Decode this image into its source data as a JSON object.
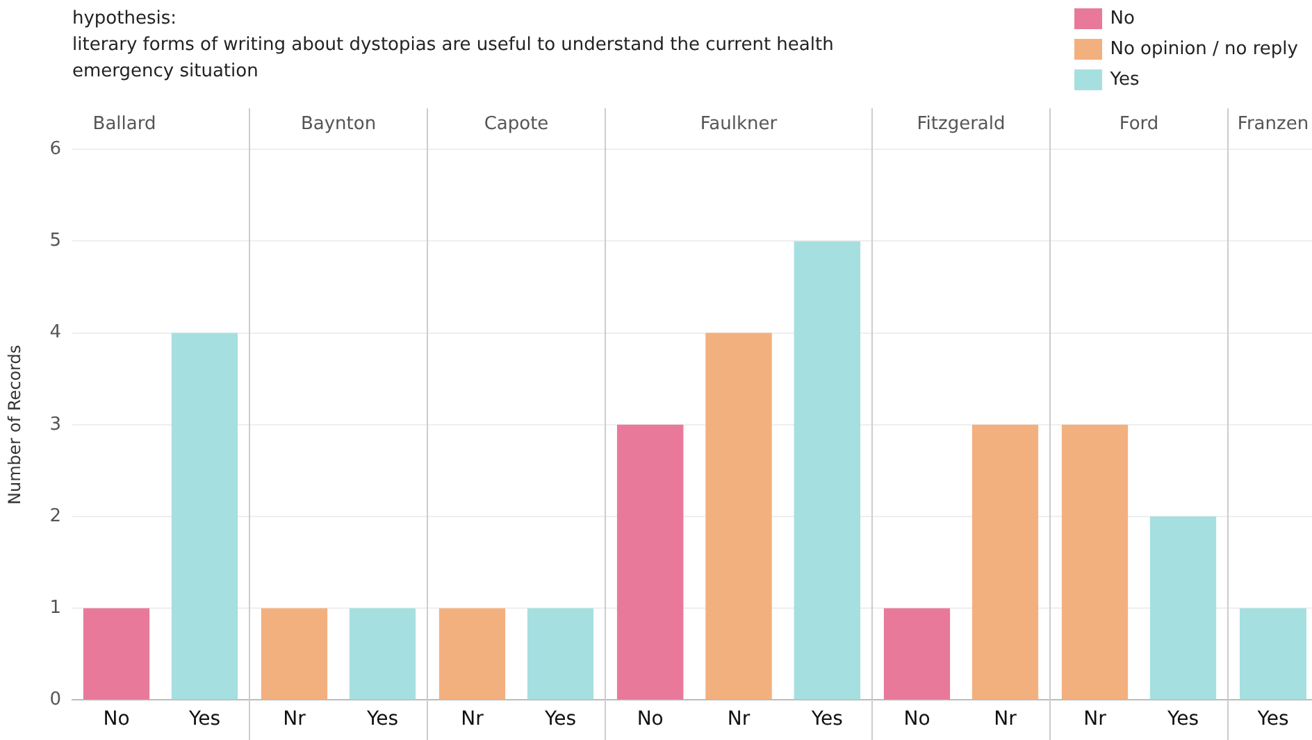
{
  "chart_data": [
    {
      "type": "bar",
      "title": "Ballard",
      "annotations": [
        "hypothesis:\nliterary forms of writing about dystopias are useful to understand the current health\nemergency situation"
      ],
      "ylabel": "Number of Records",
      "categories": [
        "No",
        "Yes"
      ],
      "stacked": true,
      "ylim": [
        0,
        6
      ],
      "yticks": [
        0,
        1,
        2,
        3,
        4,
        5,
        6
      ],
      "grid": "y",
      "series": [
        {
          "color": "#e8799a",
          "values": [
            1,
            null
          ]
        },
        {
          "color": "#a6dfe0",
          "values": [
            null,
            4
          ]
        }
      ]
    },
    {
      "type": "bar",
      "title": "Baynton",
      "categories": [
        "Nr",
        "Yes"
      ],
      "stacked": true,
      "ylim": [
        0,
        6
      ],
      "yticks": [
        0,
        1,
        2,
        3,
        4,
        5,
        6
      ],
      "grid": "y",
      "tick_labels": "x",
      "series": [
        {
          "color": "#f3b07f",
          "values": [
            1,
            null
          ]
        },
        {
          "color": "#a6dfe0",
          "values": [
            null,
            1
          ]
        }
      ]
    },
    {
      "type": "bar",
      "title": "Capote",
      "categories": [
        "Nr",
        "Yes"
      ],
      "stacked": true,
      "ylim": [
        0,
        6
      ],
      "yticks": [
        0,
        1,
        2,
        3,
        4,
        5,
        6
      ],
      "grid": "y",
      "tick_labels": "x",
      "series": [
        {
          "color": "#f3b07f",
          "values": [
            1,
            null
          ]
        },
        {
          "color": "#a6dfe0",
          "values": [
            null,
            1
          ]
        }
      ]
    },
    {
      "type": "bar",
      "title": "Faulkner",
      "categories": [
        "No",
        "Nr",
        "Yes"
      ],
      "stacked": true,
      "ylim": [
        0,
        6
      ],
      "yticks": [
        0,
        1,
        2,
        3,
        4,
        5,
        6
      ],
      "grid": "y",
      "tick_labels": "x",
      "legend": "top right",
      "series": [
        {
          "name": "No",
          "color": "#e8799a",
          "values": [
            3,
            null,
            null
          ]
        },
        {
          "name": "No opinion / no reply",
          "color": "#f3b07f",
          "values": [
            null,
            4,
            null
          ]
        },
        {
          "name": "Yes",
          "color": "#a6dfe0",
          "values": [
            null,
            null,
            5
          ]
        }
      ]
    },
    {
      "type": "bar",
      "title": "Fitzgerald",
      "categories": [
        "No",
        "Nr"
      ],
      "stacked": true,
      "ylim": [
        0,
        6
      ],
      "yticks": [
        0,
        1,
        2,
        3,
        4,
        5,
        6
      ],
      "grid": "y",
      "tick_labels": "x",
      "series": [
        {
          "color": "#e8799a",
          "values": [
            1,
            null
          ]
        },
        {
          "color": "#f3b07f",
          "values": [
            null,
            3
          ]
        }
      ]
    },
    {
      "type": "bar",
      "title": "Ford",
      "categories": [
        "Nr",
        "Yes"
      ],
      "stacked": true,
      "ylim": [
        0,
        6
      ],
      "yticks": [
        0,
        1,
        2,
        3,
        4,
        5,
        6
      ],
      "grid": "y",
      "tick_labels": "x",
      "series": [
        {
          "color": "#f3b07f",
          "values": [
            3,
            null
          ]
        },
        {
          "color": "#a6dfe0",
          "values": [
            null,
            2
          ]
        }
      ]
    },
    {
      "type": "bar",
      "title": "Franzen",
      "categories": [
        "Yes"
      ],
      "stacked": true,
      "ylim": [
        0,
        6
      ],
      "yticks": [
        0,
        1,
        2,
        3,
        4,
        5,
        6
      ],
      "grid": "y",
      "tick_labels": "x",
      "series": [
        {
          "color": "#a6dfe0",
          "values": [
            1
          ]
        }
      ]
    }
  ]
}
